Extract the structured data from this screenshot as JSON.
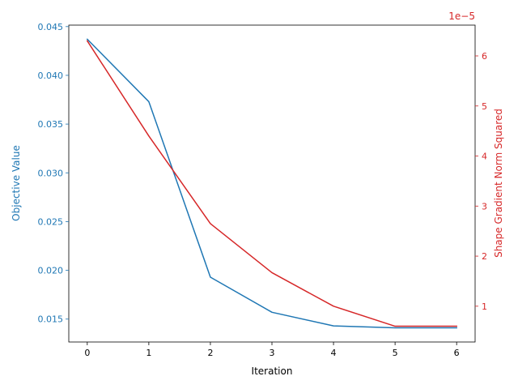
{
  "chart_data": {
    "type": "line",
    "xlabel": "Iteration",
    "x": [
      0,
      1,
      2,
      3,
      4,
      5,
      6
    ],
    "xlim": [
      -0.3,
      6.3
    ],
    "xticks": [
      0,
      1,
      2,
      3,
      4,
      5,
      6
    ],
    "grid": false,
    "series": [
      {
        "axis": "left",
        "ylabel": "Objective Value",
        "color": "#1f77b4",
        "values": [
          0.0437,
          0.0373,
          0.0193,
          0.0157,
          0.0143,
          0.0141,
          0.0141
        ],
        "ylim": [
          0.01265,
          0.04515
        ],
        "yticks": [
          0.015,
          0.02,
          0.025,
          0.03,
          0.035,
          0.04,
          0.045
        ],
        "ytick_labels": [
          "0.015",
          "0.020",
          "0.025",
          "0.030",
          "0.035",
          "0.040",
          "0.045"
        ]
      },
      {
        "axis": "right",
        "ylabel": "Shape Gradient Norm Squared",
        "color": "#d62728",
        "values": [
          6.3e-05,
          4.4e-05,
          2.65e-05,
          1.67e-05,
          1e-05,
          6e-06,
          6e-06
        ],
        "ylim": [
          2.85e-06,
          6.615e-05
        ],
        "scale_label": "1e−5",
        "yticks": [
          1e-05,
          2e-05,
          3e-05,
          4e-05,
          5e-05,
          6e-05
        ],
        "ytick_labels": [
          "1",
          "2",
          "3",
          "4",
          "5",
          "6"
        ]
      }
    ]
  }
}
